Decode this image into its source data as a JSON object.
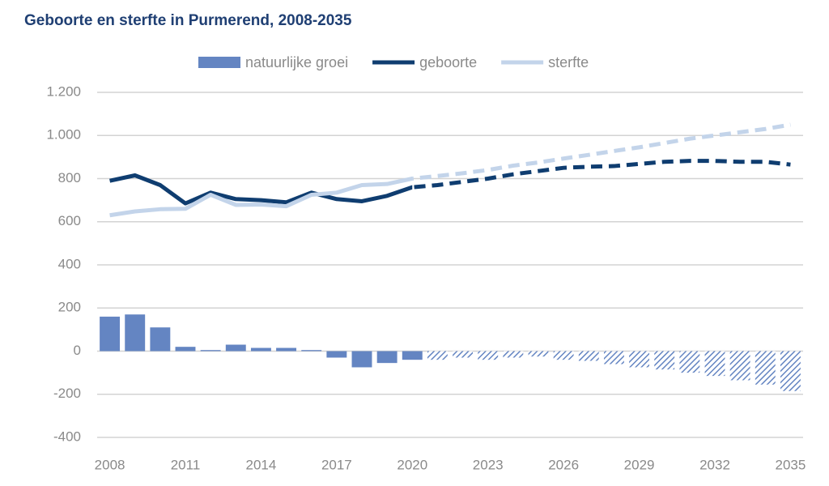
{
  "chart_data": {
    "type": "combo",
    "title": "Geboorte en sterfte in Purmerend, 2008-2035",
    "x": [
      2008,
      2009,
      2010,
      2011,
      2012,
      2013,
      2014,
      2015,
      2016,
      2017,
      2018,
      2019,
      2020,
      2021,
      2022,
      2023,
      2024,
      2025,
      2026,
      2027,
      2028,
      2029,
      2030,
      2031,
      2032,
      2033,
      2034,
      2035
    ],
    "xlim": [
      2007.5,
      2035.5
    ],
    "xticks": [
      2008,
      2011,
      2014,
      2017,
      2020,
      2023,
      2026,
      2029,
      2032,
      2035
    ],
    "ylim": [
      -400,
      1200
    ],
    "yticks": [
      {
        "value": -400,
        "label": "-400"
      },
      {
        "value": -200,
        "label": "-200"
      },
      0,
      200,
      400,
      600,
      800,
      {
        "value": 1000,
        "label": "1.000"
      },
      {
        "value": 1200,
        "label": "1.200"
      }
    ],
    "grid": true,
    "legend": "top",
    "series": [
      {
        "name": "natuurlijke groei",
        "type": "bar",
        "color": "#6485c2",
        "hatched_from": 2021,
        "values": [
          160,
          170,
          110,
          20,
          5,
          30,
          15,
          15,
          5,
          -30,
          -75,
          -55,
          -40,
          -40,
          -30,
          -40,
          -30,
          -25,
          -40,
          -45,
          -60,
          -75,
          -85,
          -100,
          -115,
          -135,
          -155,
          -185
        ]
      },
      {
        "name": "geboorte",
        "type": "line",
        "color": "#0f3d70",
        "dashed_from": 2020,
        "values": [
          790,
          815,
          770,
          685,
          735,
          705,
          700,
          690,
          735,
          705,
          695,
          720,
          760,
          770,
          785,
          800,
          820,
          835,
          850,
          855,
          858,
          868,
          878,
          882,
          882,
          878,
          878,
          865
        ]
      },
      {
        "name": "sterfte",
        "type": "line",
        "color": "#c3d4ea",
        "dashed_from": 2020,
        "values": [
          630,
          648,
          658,
          660,
          725,
          678,
          680,
          672,
          725,
          735,
          770,
          775,
          800,
          812,
          825,
          840,
          860,
          875,
          893,
          910,
          928,
          945,
          965,
          985,
          1000,
          1015,
          1030,
          1050
        ]
      }
    ]
  }
}
